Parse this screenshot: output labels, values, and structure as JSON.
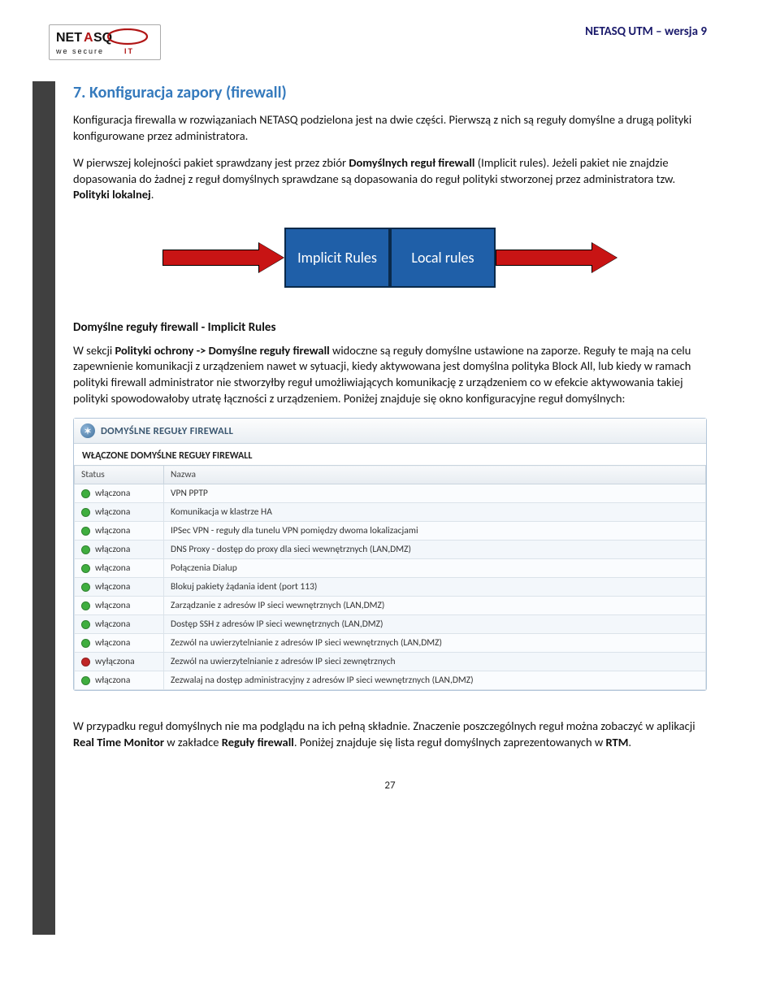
{
  "header": {
    "doc_title": "NETASQ UTM – wersja 9",
    "logo_tagline": "we secure IT"
  },
  "chapter": {
    "title": "7. Konfiguracja zapory (firewall)",
    "p1": "Konfiguracja firewalla w rozwiązaniach NETASQ podzielona jest na dwie części. Pierwszą z nich są reguły domyślne a drugą polityki konfigurowane przez administratora.",
    "p2_pre": "W pierwszej kolejności pakiet sprawdzany jest przez zbiór ",
    "p2_bold1": "Domyślnych reguł firewall",
    "p2_mid": " (Implicit rules). Jeżeli pakiet nie znajdzie dopasowania do żadnej z reguł domyślnych sprawdzane są dopasowania do reguł polityki stworzonej przez administratora tzw. ",
    "p2_bold2": "Polityki lokalnej",
    "p2_end": "."
  },
  "diagram": {
    "box1": "Implicit Rules",
    "box2": "Local rules",
    "box_bg": "#1f5fa8",
    "arrow_color": "#c81414"
  },
  "section2": {
    "heading": "Domyślne reguły firewall - Implicit Rules",
    "p1_pre": "W sekcji ",
    "p1_b1": "Polityki ochrony -> Domyślne reguły firewall",
    "p1_rest": " widoczne są reguły domyślne ustawione na zaporze. Reguły te mają na celu zapewnienie komunikacji z urządzeniem nawet w sytuacji, kiedy aktywowana jest domyślna polityka Block All, lub kiedy w ramach polityki firewall administrator nie stworzyłby reguł umożliwiających komunikację z urządzeniem co w efekcie aktywowania takiej polityki spowodowałoby utratę łączności z urządzeniem. Poniżej znajduje się okno konfiguracyjne reguł domyślnych:"
  },
  "panel": {
    "title": "DOMYŚLNE REGUŁY FIREWALL",
    "sub_title": "WŁĄCZONE DOMYŚLNE REGUŁY FIREWALL",
    "col_status": "Status",
    "col_name": "Nazwa",
    "status_on": "włączona",
    "status_off": "wyłączona",
    "color_on": "#3fae3f",
    "color_off": "#c02626",
    "rows": [
      {
        "on": true,
        "name": "VPN PPTP"
      },
      {
        "on": true,
        "name": "Komunikacja w klastrze HA"
      },
      {
        "on": true,
        "name": "IPSec VPN - reguły dla tunelu VPN pomiędzy dwoma lokalizacjami"
      },
      {
        "on": true,
        "name": "DNS Proxy - dostęp do proxy dla sieci wewnętrznych (LAN,DMZ)"
      },
      {
        "on": true,
        "name": "Połączenia Dialup"
      },
      {
        "on": true,
        "name": "Blokuj pakiety żądania ident (port 113)"
      },
      {
        "on": true,
        "name": "Zarządzanie z adresów IP sieci wewnętrznych (LAN,DMZ)"
      },
      {
        "on": true,
        "name": "Dostęp SSH z adresów IP sieci wewnętrznych (LAN,DMZ)"
      },
      {
        "on": true,
        "name": "Zezwól na uwierzytelnianie z adresów IP sieci wewnętrznych (LAN,DMZ)"
      },
      {
        "on": false,
        "name": "Zezwól na uwierzytelnianie z adresów IP sieci zewnętrznych"
      },
      {
        "on": true,
        "name": "Zezwalaj na dostęp administracyjny z adresów IP sieci wewnętrznych (LAN,DMZ)"
      }
    ]
  },
  "closing": {
    "p_pre": "W przypadku reguł domyślnych nie ma podglądu na ich pełną składnie. Znaczenie poszczególnych reguł można zobaczyć w aplikacji ",
    "p_b1": "Real Time Monitor",
    "p_mid": " w zakładce ",
    "p_b2": "Reguły firewall",
    "p_end": ". Poniżej znajduje się lista reguł domyślnych zaprezentowanych w ",
    "p_b3": "RTM",
    "p_end2": "."
  },
  "page_number": "27"
}
